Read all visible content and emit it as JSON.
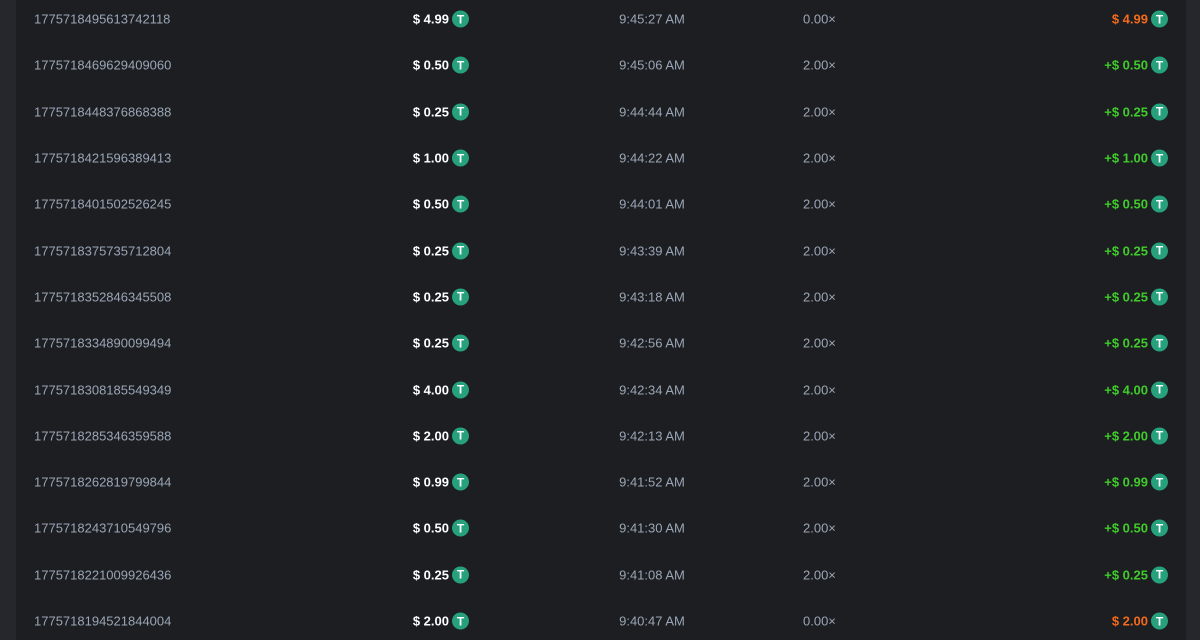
{
  "colors": {
    "win": "#3fcc2a",
    "loss": "#f26a1b",
    "coin": "#26a17b"
  },
  "coin_icon": "tether-usdt-icon",
  "rows": [
    {
      "id": "1775718495613742118",
      "amount": "$ 4.99",
      "time": "9:45:27 AM",
      "multiplier": "0.00×",
      "payout": "$ 4.99",
      "win": false
    },
    {
      "id": "1775718469629409060",
      "amount": "$ 0.50",
      "time": "9:45:06 AM",
      "multiplier": "2.00×",
      "payout": "+$ 0.50",
      "win": true
    },
    {
      "id": "1775718448376868388",
      "amount": "$ 0.25",
      "time": "9:44:44 AM",
      "multiplier": "2.00×",
      "payout": "+$ 0.25",
      "win": true
    },
    {
      "id": "1775718421596389413",
      "amount": "$ 1.00",
      "time": "9:44:22 AM",
      "multiplier": "2.00×",
      "payout": "+$ 1.00",
      "win": true
    },
    {
      "id": "1775718401502526245",
      "amount": "$ 0.50",
      "time": "9:44:01 AM",
      "multiplier": "2.00×",
      "payout": "+$ 0.50",
      "win": true
    },
    {
      "id": "1775718375735712804",
      "amount": "$ 0.25",
      "time": "9:43:39 AM",
      "multiplier": "2.00×",
      "payout": "+$ 0.25",
      "win": true
    },
    {
      "id": "1775718352846345508",
      "amount": "$ 0.25",
      "time": "9:43:18 AM",
      "multiplier": "2.00×",
      "payout": "+$ 0.25",
      "win": true
    },
    {
      "id": "1775718334890099494",
      "amount": "$ 0.25",
      "time": "9:42:56 AM",
      "multiplier": "2.00×",
      "payout": "+$ 0.25",
      "win": true
    },
    {
      "id": "1775718308185549349",
      "amount": "$ 4.00",
      "time": "9:42:34 AM",
      "multiplier": "2.00×",
      "payout": "+$ 4.00",
      "win": true
    },
    {
      "id": "1775718285346359588",
      "amount": "$ 2.00",
      "time": "9:42:13 AM",
      "multiplier": "2.00×",
      "payout": "+$ 2.00",
      "win": true
    },
    {
      "id": "1775718262819799844",
      "amount": "$ 0.99",
      "time": "9:41:52 AM",
      "multiplier": "2.00×",
      "payout": "+$ 0.99",
      "win": true
    },
    {
      "id": "1775718243710549796",
      "amount": "$ 0.50",
      "time": "9:41:30 AM",
      "multiplier": "2.00×",
      "payout": "+$ 0.50",
      "win": true
    },
    {
      "id": "1775718221009926436",
      "amount": "$ 0.25",
      "time": "9:41:08 AM",
      "multiplier": "2.00×",
      "payout": "+$ 0.25",
      "win": true
    },
    {
      "id": "1775718194521844004",
      "amount": "$ 2.00",
      "time": "9:40:47 AM",
      "multiplier": "0.00×",
      "payout": "$ 2.00",
      "win": false
    }
  ]
}
